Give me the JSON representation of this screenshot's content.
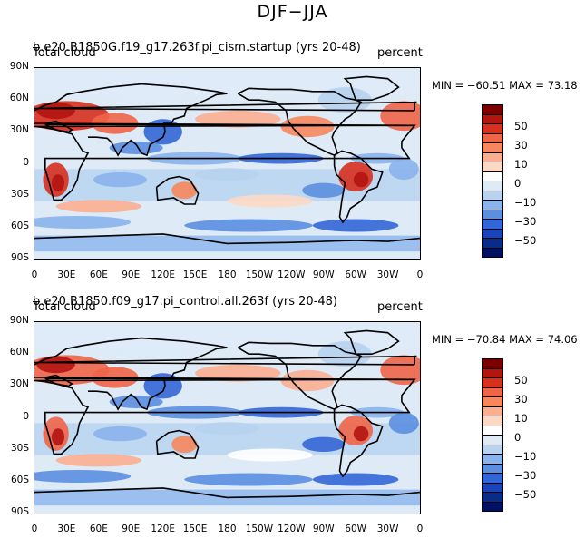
{
  "title": "DJF−JJA",
  "chart_data": [
    {
      "type": "heatmap",
      "case_name": "b.e20.B1850G.f19_g17.263f.pi_cism.startup (yrs 20-48)",
      "variable": "Total cloud",
      "units": "percent",
      "stats_text": "MIN = −60.51 MAX =  73.18",
      "min": -60.51,
      "max": 73.18,
      "x_ticks": [
        "0",
        "30E",
        "60E",
        "90E",
        "120E",
        "150E",
        "180",
        "150W",
        "120W",
        "90W",
        "60W",
        "30W",
        "0"
      ],
      "y_ticks": [
        "90N",
        "60N",
        "30N",
        "0",
        "30S",
        "60S",
        "90S"
      ],
      "colorbar_ticks": [
        "50",
        "30",
        "10",
        "0",
        "−10",
        "−30",
        "−50"
      ]
    },
    {
      "type": "heatmap",
      "case_name": "b.e20.B1850.f09_g17.pi_control.all.263f (yrs 20-48)",
      "variable": "Total cloud",
      "units": "percent",
      "stats_text": "MIN = −70.84 MAX =  74.06",
      "min": -70.84,
      "max": 74.06,
      "x_ticks": [
        "0",
        "30E",
        "60E",
        "90E",
        "120E",
        "150E",
        "180",
        "150W",
        "120W",
        "90W",
        "60W",
        "30W",
        "0"
      ],
      "y_ticks": [
        "90N",
        "60N",
        "30N",
        "0",
        "30S",
        "60S",
        "90S"
      ],
      "colorbar_ticks": [
        "50",
        "30",
        "10",
        "0",
        "−10",
        "−30",
        "−50"
      ]
    }
  ],
  "colorbar_colors": [
    "#7a0000",
    "#b3150f",
    "#d7301f",
    "#ef6548",
    "#f7875c",
    "#fcae91",
    "#fdd9c4",
    "#ffffff",
    "#deebf7",
    "#b7d3f0",
    "#8ab4ec",
    "#5b8fe0",
    "#3366d6",
    "#1a43b8",
    "#082c8a",
    "#001063"
  ]
}
